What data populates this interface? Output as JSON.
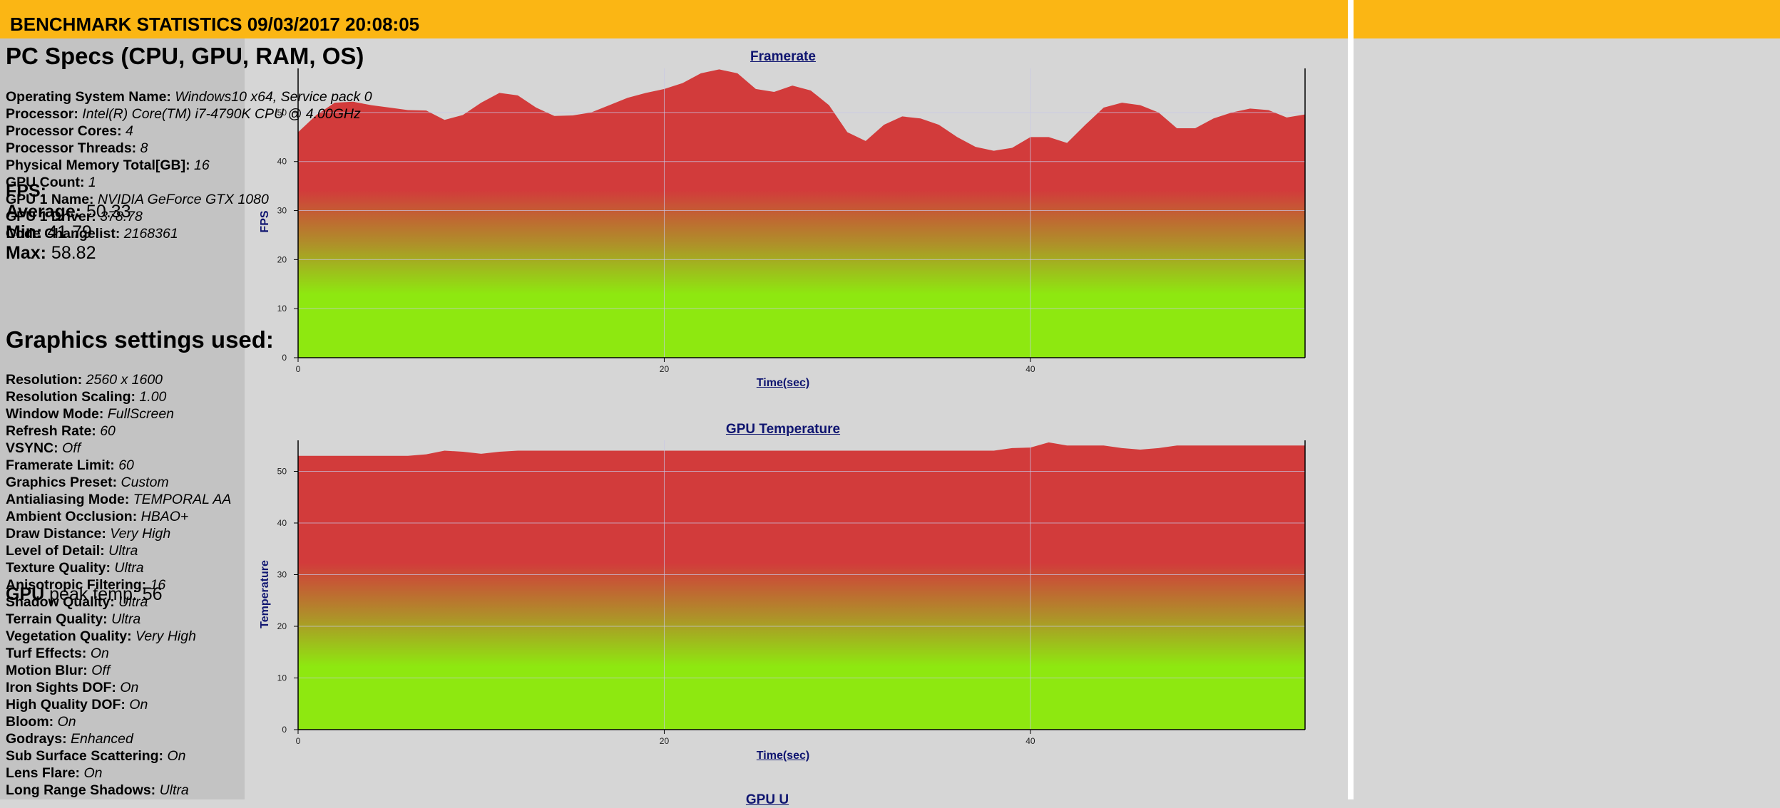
{
  "header": {
    "title": "BENCHMARK STATISTICS 09/03/2017 20:08:05"
  },
  "fps_stats": {
    "heading": "FPS:",
    "average_label": "Average:",
    "average": "50.33",
    "min_label": "Min:",
    "min": "41.79",
    "max_label": "Max:",
    "max": "58.82"
  },
  "gpu_stats": {
    "label_bold": "GPU",
    "label_rest": "peak temp:",
    "value": "56"
  },
  "colors": {
    "header": "#fbb614",
    "area_top": "#d23b3b",
    "area_bottom": "#8ee810",
    "title_text": "#0f1570"
  },
  "chart_data": [
    {
      "type": "area",
      "title": "Framerate",
      "xlabel": "Time(sec)",
      "ylabel": "FPS",
      "xlim": [
        0,
        55
      ],
      "ylim": [
        0,
        59
      ],
      "xticks": [
        "0",
        "20",
        "40"
      ],
      "yticks": [
        "0",
        "10",
        "20",
        "30",
        "40",
        "50"
      ],
      "grid": true,
      "x": [
        0,
        1,
        2,
        3,
        4,
        5,
        6,
        7,
        8,
        9,
        10,
        11,
        12,
        13,
        14,
        15,
        16,
        17,
        18,
        19,
        20,
        21,
        22,
        23,
        24,
        25,
        26,
        27,
        28,
        29,
        30,
        31,
        32,
        33,
        34,
        35,
        36,
        37,
        38,
        39,
        40,
        41,
        42,
        43,
        44,
        45,
        46,
        47,
        48,
        49,
        50,
        51,
        52,
        53,
        54,
        55
      ],
      "y": [
        46,
        49.5,
        52,
        52.2,
        51.5,
        51,
        50.5,
        50.4,
        48.5,
        49.5,
        52,
        54,
        53.5,
        51,
        49.3,
        49.4,
        50,
        51.5,
        53,
        54,
        54.8,
        56,
        58,
        58.8,
        58,
        54.8,
        54.2,
        55.5,
        54.5,
        51.5,
        46,
        44.2,
        47.5,
        49.2,
        48.8,
        47.5,
        45,
        43,
        42.2,
        42.8,
        45,
        45,
        43.8,
        47.5,
        51,
        52,
        51.5,
        50,
        46.8,
        46.8,
        48.8,
        50,
        50.8,
        50.5,
        49,
        49.6
      ]
    },
    {
      "type": "area",
      "title": "GPU Temperature",
      "xlabel": "Time(sec)",
      "ylabel": "Temperature",
      "xlim": [
        0,
        55
      ],
      "ylim": [
        0,
        56
      ],
      "xticks": [
        "0",
        "20",
        "40"
      ],
      "yticks": [
        "0",
        "10",
        "20",
        "30",
        "40",
        "50"
      ],
      "grid": true,
      "x": [
        0,
        1,
        2,
        3,
        4,
        5,
        6,
        7,
        8,
        9,
        10,
        11,
        12,
        13,
        14,
        15,
        16,
        17,
        18,
        19,
        20,
        21,
        22,
        23,
        24,
        25,
        26,
        27,
        28,
        29,
        30,
        31,
        32,
        33,
        34,
        35,
        36,
        37,
        38,
        39,
        40,
        41,
        42,
        43,
        44,
        45,
        46,
        47,
        48,
        49,
        50,
        51,
        52,
        53,
        54,
        55
      ],
      "y": [
        53,
        53,
        53,
        53,
        53,
        53,
        53,
        53.3,
        54,
        53.8,
        53.4,
        53.8,
        54,
        54,
        54,
        54,
        54,
        54,
        54,
        54,
        54,
        54,
        54,
        54,
        54,
        54,
        54,
        54,
        54,
        54,
        54,
        54,
        54,
        54,
        54,
        54,
        54,
        54,
        54,
        54.5,
        54.6,
        55.6,
        55,
        55,
        55,
        54.5,
        54.2,
        54.5,
        55,
        55,
        55,
        55,
        55,
        55,
        55,
        55
      ]
    }
  ],
  "third_chart_title_partial": "GPU U",
  "pc_specs": {
    "heading": "PC Specs (CPU, GPU, RAM, OS)",
    "items": [
      {
        "label": "Operating System Name:",
        "value": "Windows10 x64, Service pack 0"
      },
      {
        "label": "Processor:",
        "value": "Intel(R) Core(TM) i7-4790K CPU @ 4.00GHz"
      },
      {
        "label": "Processor Cores:",
        "value": "4"
      },
      {
        "label": "Processor Threads:",
        "value": "8"
      },
      {
        "label": "Physical Memory Total[GB]:",
        "value": "16"
      },
      {
        "label": "GPU Count:",
        "value": "1"
      },
      {
        "label": "GPU 1 Name:",
        "value": "NVIDIA GeForce GTX 1080"
      },
      {
        "label": "GPU 1 Driver:",
        "value": "378.78"
      },
      {
        "label": "Code Changelist:",
        "value": "2168361"
      }
    ]
  },
  "graphics_settings": {
    "heading": "Graphics settings used:",
    "items": [
      {
        "label": "Resolution:",
        "value": "2560 x 1600"
      },
      {
        "label": "Resolution Scaling:",
        "value": "1.00"
      },
      {
        "label": "Window Mode:",
        "value": "FullScreen"
      },
      {
        "label": "Refresh Rate:",
        "value": "60"
      },
      {
        "label": "VSYNC:",
        "value": "Off"
      },
      {
        "label": "Framerate Limit:",
        "value": "60"
      },
      {
        "label": "Graphics Preset:",
        "value": "Custom"
      },
      {
        "label": "Antialiasing Mode:",
        "value": "TEMPORAL AA"
      },
      {
        "label": "Ambient Occlusion:",
        "value": "HBAO+"
      },
      {
        "label": "Draw Distance:",
        "value": "Very High"
      },
      {
        "label": "Level of Detail:",
        "value": "Ultra"
      },
      {
        "label": "Texture Quality:",
        "value": "Ultra"
      },
      {
        "label": "Anisotropic Filtering:",
        "value": "16"
      },
      {
        "label": "Shadow Quality:",
        "value": "Ultra"
      },
      {
        "label": "Terrain Quality:",
        "value": "Ultra"
      },
      {
        "label": "Vegetation Quality:",
        "value": "Very High"
      },
      {
        "label": "Turf Effects:",
        "value": "On"
      },
      {
        "label": "Motion Blur:",
        "value": "Off"
      },
      {
        "label": "Iron Sights DOF:",
        "value": "On"
      },
      {
        "label": "High Quality DOF:",
        "value": "On"
      },
      {
        "label": "Bloom:",
        "value": "On"
      },
      {
        "label": "Godrays:",
        "value": "Enhanced"
      },
      {
        "label": "Sub Surface Scattering:",
        "value": "On"
      },
      {
        "label": "Lens Flare:",
        "value": "On"
      },
      {
        "label": "Long Range Shadows:",
        "value": "Ultra"
      }
    ]
  }
}
